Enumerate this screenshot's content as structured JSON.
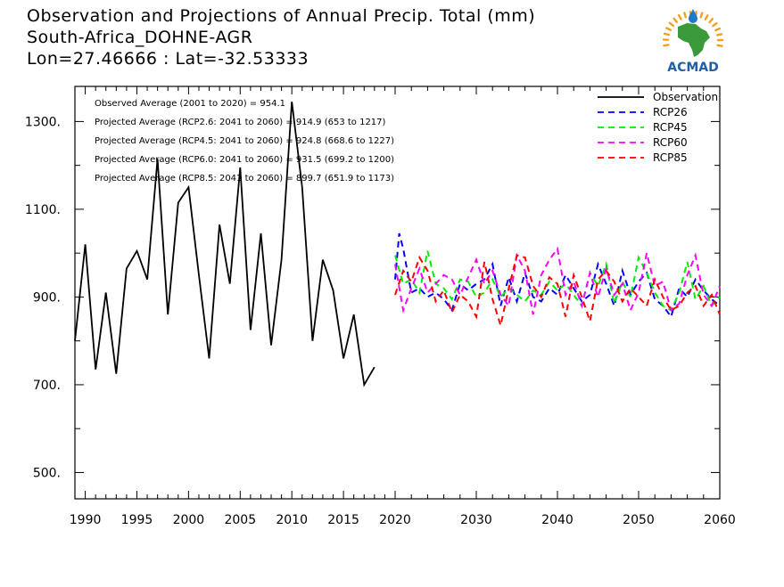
{
  "header": {
    "title": "Observation and Projections of Annual Precip. Total (mm)",
    "station": "South-Africa_DOHNE-AGR",
    "coords": "Lon=27.46666 : Lat=-32.53333"
  },
  "logo": {
    "text": "ACMAD",
    "icon": "africa-map-icon",
    "colors": {
      "africa": "#3a9a3a",
      "drop": "#1f78c8",
      "rays": "#f0a020",
      "text": "#1f5fa8"
    }
  },
  "chart_data": {
    "type": "line",
    "title": "Observation and Projections of Annual Precip. Total (mm)",
    "xlim": [
      1989,
      2060
    ],
    "ylim": [
      440,
      1380
    ],
    "x_ticks": [
      1990,
      1995,
      2000,
      2005,
      2010,
      2015,
      2020,
      2030,
      2040,
      2050,
      2060
    ],
    "y_ticks": [
      500,
      700,
      900,
      1100,
      1300
    ],
    "y_tick_labels": [
      "500.",
      "700.",
      "900.",
      "1100.",
      "1300."
    ],
    "stats": [
      "Observed Average (2001 to 2020) = 954.1",
      "Projected Average (RCP2.6: 2041 to 2060) = 914.9 (653 to 1217)",
      "Projected Average (RCP4.5: 2041 to 2060) = 924.8 (668.6 to 1227)",
      "Projected Average (RCP6.0: 2041 to 2060) = 931.5 (699.2 to 1200)",
      "Projected Average (RCP8.5: 2041 to 2060) = 899.7 (651.9 to 1173)"
    ],
    "legend_position": "top-right",
    "series": [
      {
        "name": "Observation",
        "color": "#000000",
        "dash": false,
        "x": [
          1989,
          1990,
          1991,
          1992,
          1993,
          1994,
          1995,
          1996,
          1997,
          1998,
          1999,
          2000,
          2001,
          2002,
          2003,
          2004,
          2005,
          2006,
          2007,
          2008,
          2009,
          2010,
          2011,
          2012,
          2013,
          2014,
          2015,
          2016,
          2017,
          2018,
          2019
        ],
        "y": [
          800,
          1020,
          735,
          910,
          725,
          965,
          1005,
          940,
          1215,
          860,
          1115,
          1150,
          950,
          760,
          1065,
          930,
          1195,
          825,
          1045,
          790,
          985,
          1345,
          1150,
          800,
          985,
          915,
          760,
          860,
          700,
          740,
          null
        ]
      },
      {
        "name": "RCP26",
        "color": "#0000ff",
        "dash": true,
        "x": [
          2020,
          2020.5,
          2021,
          2021.5,
          2022,
          2023,
          2024,
          2025,
          2026,
          2027,
          2028,
          2029,
          2030,
          2031,
          2032,
          2033,
          2034,
          2035,
          2036,
          2037,
          2038,
          2039,
          2040,
          2041,
          2042,
          2043,
          2044,
          2045,
          2046,
          2047,
          2048,
          2049,
          2050,
          2051,
          2052,
          2053,
          2054,
          2055,
          2056,
          2057,
          2058,
          2059,
          2060
        ],
        "y": [
          940,
          1045,
          1010,
          960,
          910,
          920,
          900,
          910,
          895,
          870,
          930,
          915,
          930,
          940,
          975,
          880,
          945,
          890,
          955,
          900,
          890,
          920,
          905,
          950,
          920,
          890,
          905,
          975,
          930,
          880,
          960,
          905,
          935,
          955,
          895,
          880,
          855,
          920,
          900,
          940,
          915,
          895,
          880
        ]
      },
      {
        "name": "RCP45",
        "color": "#00ee00",
        "dash": true,
        "x": [
          2020,
          2021,
          2022,
          2023,
          2024,
          2025,
          2026,
          2027,
          2028,
          2029,
          2030,
          2031,
          2032,
          2033,
          2034,
          2035,
          2036,
          2037,
          2038,
          2039,
          2040,
          2041,
          2042,
          2043,
          2044,
          2045,
          2046,
          2047,
          2048,
          2049,
          2050,
          2051,
          2052,
          2053,
          2054,
          2055,
          2056,
          2057,
          2058,
          2059,
          2060
        ],
        "y": [
          995,
          930,
          940,
          910,
          1005,
          930,
          920,
          895,
          940,
          935,
          900,
          910,
          940,
          900,
          920,
          905,
          890,
          915,
          905,
          935,
          915,
          930,
          905,
          880,
          955,
          925,
          975,
          885,
          935,
          900,
          990,
          955,
          910,
          880,
          870,
          910,
          980,
          895,
          925,
          880,
          900
        ]
      },
      {
        "name": "RCP60",
        "color": "#ff00ff",
        "dash": true,
        "x": [
          2020,
          2021,
          2022,
          2023,
          2024,
          2025,
          2026,
          2027,
          2028,
          2029,
          2030,
          2031,
          2032,
          2033,
          2034,
          2035,
          2036,
          2037,
          2038,
          2039,
          2040,
          2041,
          2042,
          2043,
          2044,
          2045,
          2046,
          2047,
          2048,
          2049,
          2050,
          2051,
          2052,
          2053,
          2054,
          2055,
          2056,
          2057,
          2058,
          2059,
          2060
        ],
        "y": [
          975,
          870,
          920,
          965,
          910,
          930,
          950,
          940,
          905,
          945,
          985,
          930,
          960,
          905,
          880,
          995,
          960,
          860,
          950,
          985,
          1010,
          905,
          935,
          880,
          955,
          900,
          965,
          905,
          930,
          870,
          910,
          1000,
          925,
          935,
          870,
          885,
          950,
          995,
          905,
          880,
          925
        ]
      },
      {
        "name": "RCP85",
        "color": "#ff0000",
        "dash": true,
        "x": [
          2020,
          2021,
          2022,
          2023,
          2024,
          2025,
          2026,
          2027,
          2028,
          2029,
          2030,
          2031,
          2032,
          2033,
          2034,
          2035,
          2036,
          2037,
          2038,
          2039,
          2040,
          2041,
          2042,
          2043,
          2044,
          2045,
          2046,
          2047,
          2048,
          2049,
          2050,
          2051,
          2052,
          2053,
          2054,
          2055,
          2056,
          2057,
          2058,
          2059,
          2060
        ],
        "y": [
          905,
          960,
          935,
          990,
          960,
          890,
          915,
          865,
          905,
          890,
          855,
          980,
          895,
          835,
          920,
          995,
          990,
          925,
          900,
          945,
          930,
          855,
          950,
          900,
          845,
          940,
          960,
          935,
          890,
          920,
          900,
          880,
          940,
          900,
          870,
          880,
          910,
          925,
          880,
          905,
          860
        ]
      }
    ]
  }
}
